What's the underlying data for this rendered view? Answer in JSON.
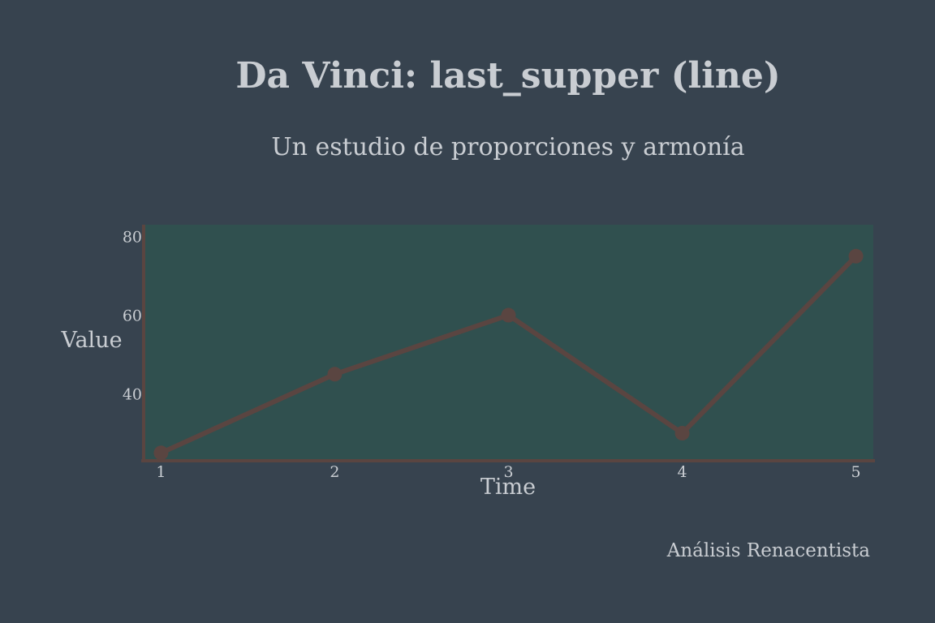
{
  "page": {
    "title": "Da Vinci: last_supper (line)",
    "subtitle": "Un estudio de proporciones y armonía",
    "footer": "Análisis Renacentista"
  },
  "colors": {
    "background": "#37434f",
    "plot_area": "#30504f",
    "line": "#5a4541",
    "axis": "#5a4541",
    "text": "#c9cdd2"
  },
  "chart_data": {
    "type": "line",
    "title": "Da Vinci: last_supper (line)",
    "subtitle": "Un estudio de proporciones y armonía",
    "xlabel": "Time",
    "ylabel": "Value",
    "x": [
      1,
      2,
      3,
      4,
      5
    ],
    "x_tick_labels": [
      "1",
      "2",
      "3",
      "4",
      "5"
    ],
    "y_ticks": [
      40,
      60,
      80
    ],
    "y_tick_labels": [
      "40",
      "60",
      "80"
    ],
    "series": [
      {
        "values": [
          25,
          45,
          60,
          30,
          75
        ]
      }
    ],
    "xlim": [
      0.9,
      5.1
    ],
    "ylim": [
      23,
      83
    ],
    "grid": false,
    "legend": "none"
  }
}
